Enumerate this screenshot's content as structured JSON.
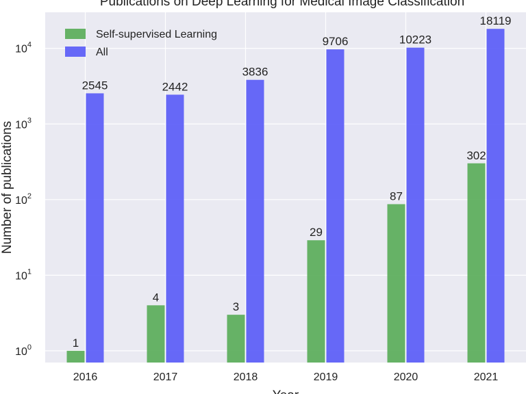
{
  "chart_data": {
    "type": "bar",
    "title": "Publications on Deep Learning for Medical Image Classification",
    "xlabel": "Year",
    "ylabel": "Number of publications",
    "yscale": "log",
    "ylim": [
      0.7,
      30000
    ],
    "yticks": [
      {
        "value": 1,
        "base": "10",
        "exp": "0"
      },
      {
        "value": 10,
        "base": "10",
        "exp": "1"
      },
      {
        "value": 100,
        "base": "10",
        "exp": "2"
      },
      {
        "value": 1000,
        "base": "10",
        "exp": "3"
      },
      {
        "value": 10000,
        "base": "10",
        "exp": "4"
      }
    ],
    "categories": [
      "2016",
      "2017",
      "2018",
      "2019",
      "2020",
      "2021"
    ],
    "series": [
      {
        "name": "Self-supervised Learning",
        "color": "#5aad5a",
        "values": [
          1,
          4,
          3,
          29,
          87,
          302
        ],
        "labels": [
          "1",
          "4",
          "3",
          "29",
          "87",
          "302"
        ]
      },
      {
        "name": "All",
        "color": "#5a5cf7",
        "values": [
          2545,
          2442,
          3836,
          9706,
          10223,
          18119
        ],
        "labels": [
          "2545",
          "2442",
          "3836",
          "9706",
          "10223",
          "18119"
        ]
      }
    ],
    "grid": true,
    "legend_position": "top-left",
    "background": "#eaeaf2"
  }
}
